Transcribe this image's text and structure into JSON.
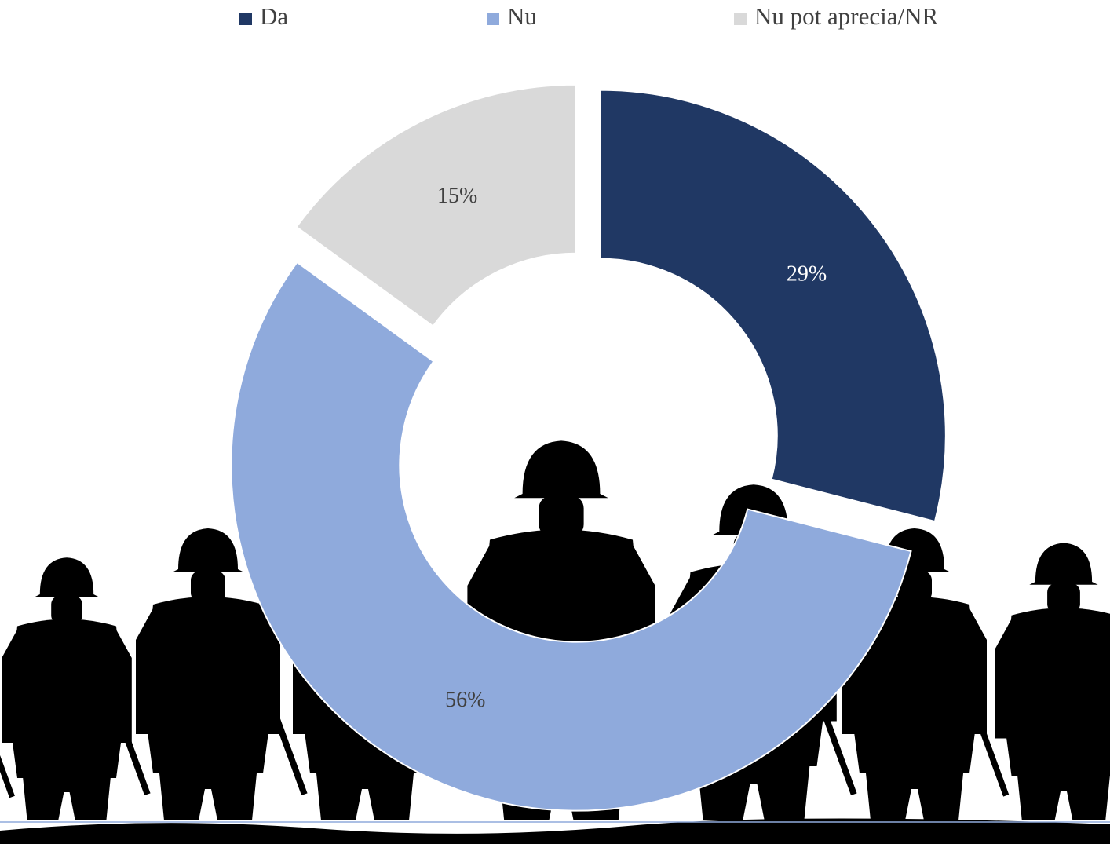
{
  "chart_data": {
    "type": "pie",
    "donut": true,
    "categories": [
      "Da",
      "Nu",
      "Nu pot aprecia/NR"
    ],
    "values": [
      29,
      56,
      15
    ],
    "value_labels": [
      "29%",
      "56%",
      "15%"
    ],
    "colors": [
      "#203864",
      "#8faadc",
      "#d9d9d9"
    ],
    "legend": "top"
  }
}
